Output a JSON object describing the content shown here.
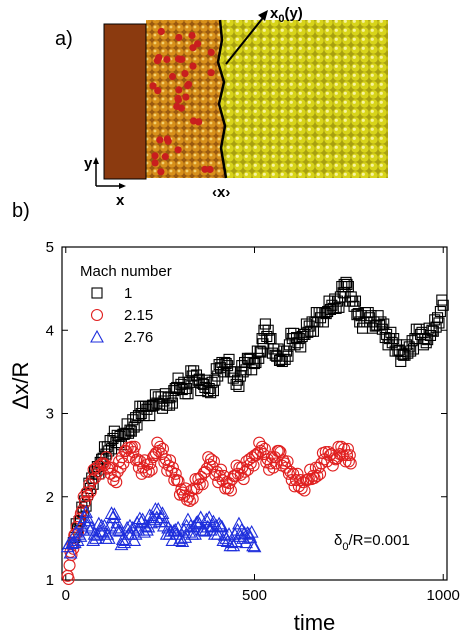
{
  "panels": {
    "a_label": "a)",
    "b_label": "b)"
  },
  "schematic": {
    "front_label": "x0(y)",
    "front_label_main": "x",
    "front_label_sub": "0",
    "front_label_tail": "(y)",
    "mean_label": "‹x›",
    "axis_y": "y",
    "axis_x": "x",
    "colors": {
      "wall": "#8b3a0f",
      "shocked": "#d8901a",
      "shocked_hot": "#c81e1e",
      "unshocked": "#d8d41a"
    }
  },
  "chart_data": {
    "type": "scatter",
    "xlabel": "time",
    "ylabel": "Δx/R",
    "xlim": [
      -10,
      1010
    ],
    "ylim": [
      1,
      5
    ],
    "x_ticks": [
      0,
      500,
      1000
    ],
    "y_ticks": [
      1,
      2,
      3,
      4,
      5
    ],
    "legend_title": "Mach number",
    "legend_position": "top-left",
    "annotation": "δ₀/R=0.001",
    "annotation_main": "δ",
    "annotation_sub": "0",
    "annotation_tail": "/R=0.001",
    "series": [
      {
        "name": "1",
        "marker": "square",
        "color": "#000000",
        "points": [
          [
            20,
            1.45
          ],
          [
            35,
            1.7
          ],
          [
            50,
            1.95
          ],
          [
            65,
            2.1
          ],
          [
            80,
            2.3
          ],
          [
            95,
            2.45
          ],
          [
            110,
            2.6
          ],
          [
            125,
            2.7
          ],
          [
            140,
            2.65
          ],
          [
            155,
            2.75
          ],
          [
            170,
            2.8
          ],
          [
            185,
            2.95
          ],
          [
            200,
            3.0
          ],
          [
            215,
            3.05
          ],
          [
            230,
            3.1
          ],
          [
            245,
            3.2
          ],
          [
            260,
            3.15
          ],
          [
            275,
            3.1
          ],
          [
            290,
            3.3
          ],
          [
            305,
            3.35
          ],
          [
            320,
            3.3
          ],
          [
            335,
            3.45
          ],
          [
            350,
            3.4
          ],
          [
            365,
            3.35
          ],
          [
            380,
            3.3
          ],
          [
            395,
            3.4
          ],
          [
            410,
            3.55
          ],
          [
            425,
            3.6
          ],
          [
            440,
            3.5
          ],
          [
            455,
            3.4
          ],
          [
            470,
            3.5
          ],
          [
            485,
            3.65
          ],
          [
            500,
            3.6
          ],
          [
            515,
            3.75
          ],
          [
            525,
            4.0
          ],
          [
            540,
            3.9
          ],
          [
            555,
            3.7
          ],
          [
            570,
            3.65
          ],
          [
            585,
            3.75
          ],
          [
            600,
            3.9
          ],
          [
            615,
            3.85
          ],
          [
            630,
            3.95
          ],
          [
            645,
            4.05
          ],
          [
            660,
            4.1
          ],
          [
            675,
            4.15
          ],
          [
            690,
            4.2
          ],
          [
            705,
            4.3
          ],
          [
            720,
            4.35
          ],
          [
            735,
            4.45
          ],
          [
            745,
            4.55
          ],
          [
            760,
            4.35
          ],
          [
            775,
            4.2
          ],
          [
            790,
            4.1
          ],
          [
            805,
            4.15
          ],
          [
            820,
            4.05
          ],
          [
            835,
            4.1
          ],
          [
            850,
            3.95
          ],
          [
            865,
            3.85
          ],
          [
            880,
            3.75
          ],
          [
            895,
            3.7
          ],
          [
            910,
            3.8
          ],
          [
            925,
            3.9
          ],
          [
            940,
            3.95
          ],
          [
            955,
            3.85
          ],
          [
            970,
            4.0
          ],
          [
            985,
            4.15
          ],
          [
            1000,
            4.3
          ]
        ]
      },
      {
        "name": "2.15",
        "marker": "circle",
        "color": "#e02020",
        "points": [
          [
            5,
            1.05
          ],
          [
            15,
            1.3
          ],
          [
            25,
            1.55
          ],
          [
            40,
            1.8
          ],
          [
            55,
            2.05
          ],
          [
            70,
            2.2
          ],
          [
            85,
            2.3
          ],
          [
            100,
            2.4
          ],
          [
            115,
            2.35
          ],
          [
            130,
            2.25
          ],
          [
            145,
            2.35
          ],
          [
            160,
            2.55
          ],
          [
            175,
            2.6
          ],
          [
            190,
            2.45
          ],
          [
            205,
            2.35
          ],
          [
            220,
            2.3
          ],
          [
            235,
            2.5
          ],
          [
            250,
            2.6
          ],
          [
            265,
            2.45
          ],
          [
            280,
            2.3
          ],
          [
            295,
            2.2
          ],
          [
            310,
            2.05
          ],
          [
            325,
            2.0
          ],
          [
            340,
            2.1
          ],
          [
            355,
            2.15
          ],
          [
            370,
            2.3
          ],
          [
            385,
            2.45
          ],
          [
            400,
            2.3
          ],
          [
            415,
            2.2
          ],
          [
            430,
            2.1
          ],
          [
            445,
            2.25
          ],
          [
            460,
            2.35
          ],
          [
            475,
            2.3
          ],
          [
            490,
            2.4
          ],
          [
            505,
            2.5
          ],
          [
            520,
            2.6
          ],
          [
            535,
            2.45
          ],
          [
            550,
            2.35
          ],
          [
            565,
            2.55
          ],
          [
            580,
            2.4
          ],
          [
            595,
            2.3
          ],
          [
            610,
            2.2
          ],
          [
            625,
            2.1
          ],
          [
            640,
            2.2
          ],
          [
            655,
            2.25
          ],
          [
            670,
            2.35
          ],
          [
            685,
            2.45
          ],
          [
            700,
            2.5
          ],
          [
            715,
            2.45
          ],
          [
            730,
            2.6
          ],
          [
            745,
            2.5
          ],
          [
            755,
            2.4
          ]
        ]
      },
      {
        "name": "2.76",
        "marker": "triangle",
        "color": "#1e2edc",
        "points": [
          [
            5,
            1.4
          ],
          [
            20,
            1.45
          ],
          [
            35,
            1.55
          ],
          [
            50,
            1.75
          ],
          [
            65,
            1.6
          ],
          [
            80,
            1.5
          ],
          [
            95,
            1.65
          ],
          [
            110,
            1.55
          ],
          [
            125,
            1.75
          ],
          [
            140,
            1.6
          ],
          [
            155,
            1.45
          ],
          [
            170,
            1.65
          ],
          [
            185,
            1.55
          ],
          [
            200,
            1.7
          ],
          [
            215,
            1.6
          ],
          [
            230,
            1.75
          ],
          [
            245,
            1.85
          ],
          [
            260,
            1.65
          ],
          [
            275,
            1.55
          ],
          [
            290,
            1.6
          ],
          [
            305,
            1.5
          ],
          [
            320,
            1.65
          ],
          [
            335,
            1.55
          ],
          [
            350,
            1.7
          ],
          [
            365,
            1.6
          ],
          [
            380,
            1.75
          ],
          [
            395,
            1.55
          ],
          [
            410,
            1.65
          ],
          [
            425,
            1.5
          ],
          [
            440,
            1.45
          ],
          [
            455,
            1.6
          ],
          [
            470,
            1.5
          ],
          [
            485,
            1.55
          ],
          [
            500,
            1.4
          ]
        ]
      }
    ]
  }
}
